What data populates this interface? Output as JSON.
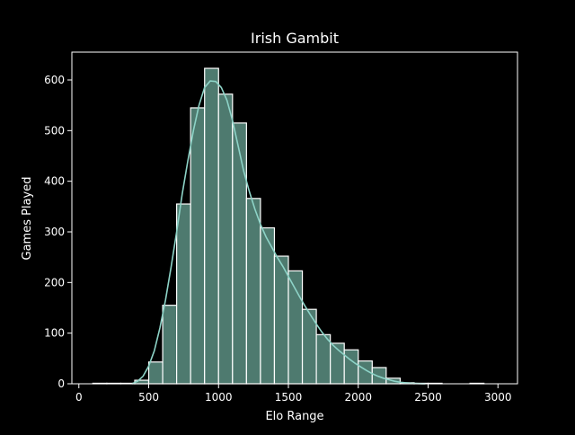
{
  "chart_data": {
    "type": "bar",
    "title": "Irish Gambit",
    "xlabel": "Elo Range",
    "ylabel": "Games Played",
    "xlim": [
      -50,
      3140
    ],
    "ylim": [
      0,
      655
    ],
    "xticks": [
      0,
      500,
      1000,
      1500,
      2000,
      2500,
      3000
    ],
    "yticks": [
      0,
      100,
      200,
      300,
      400,
      500,
      600
    ],
    "grid": false,
    "legend": "none",
    "bins": {
      "x0": [
        100,
        200,
        300,
        400,
        500,
        600,
        700,
        800,
        900,
        1000,
        1100,
        1200,
        1300,
        1400,
        1500,
        1600,
        1700,
        1800,
        1900,
        2000,
        2100,
        2200,
        2300,
        2400,
        2500,
        2600,
        2700,
        2800,
        2900
      ],
      "x1": [
        200,
        300,
        400,
        500,
        600,
        700,
        800,
        900,
        1000,
        1100,
        1200,
        1300,
        1400,
        1500,
        1600,
        1700,
        1800,
        1900,
        2000,
        2100,
        2200,
        2300,
        2400,
        2500,
        2600,
        2700,
        2800,
        2900,
        3000
      ],
      "values": [
        1,
        1,
        1,
        7,
        43,
        155,
        355,
        545,
        623,
        572,
        515,
        366,
        308,
        252,
        223,
        147,
        97,
        80,
        67,
        45,
        32,
        11,
        2,
        1,
        1,
        0,
        0,
        1,
        0
      ]
    },
    "kde": {
      "x": [
        380,
        420,
        460,
        500,
        540,
        580,
        620,
        660,
        700,
        740,
        780,
        820,
        860,
        900,
        940,
        980,
        1020,
        1060,
        1100,
        1140,
        1180,
        1220,
        1260,
        1300,
        1340,
        1380,
        1420,
        1460,
        1500,
        1540,
        1580,
        1620,
        1660,
        1700,
        1740,
        1780,
        1820,
        1860,
        1900,
        1940,
        1980,
        2020,
        2060,
        2100,
        2140,
        2180,
        2220,
        2260,
        2300,
        2340,
        2380,
        2420,
        2460,
        2480
      ],
      "y": [
        0,
        5,
        15,
        35,
        65,
        110,
        165,
        230,
        300,
        375,
        440,
        500,
        550,
        585,
        598,
        597,
        585,
        560,
        520,
        470,
        420,
        380,
        345,
        315,
        290,
        270,
        250,
        232,
        212,
        192,
        172,
        153,
        135,
        118,
        102,
        88,
        76,
        66,
        57,
        48,
        40,
        33,
        26,
        20,
        15,
        11,
        8,
        5,
        3,
        2,
        1,
        0.5,
        0.2,
        0
      ]
    },
    "colors": {
      "background": "#000000",
      "bar_fill": "#4e7a6f",
      "bar_edge": "#ffffff",
      "kde_line": "#8dd3c7",
      "axis": "#ffffff",
      "text": "#ffffff"
    }
  }
}
